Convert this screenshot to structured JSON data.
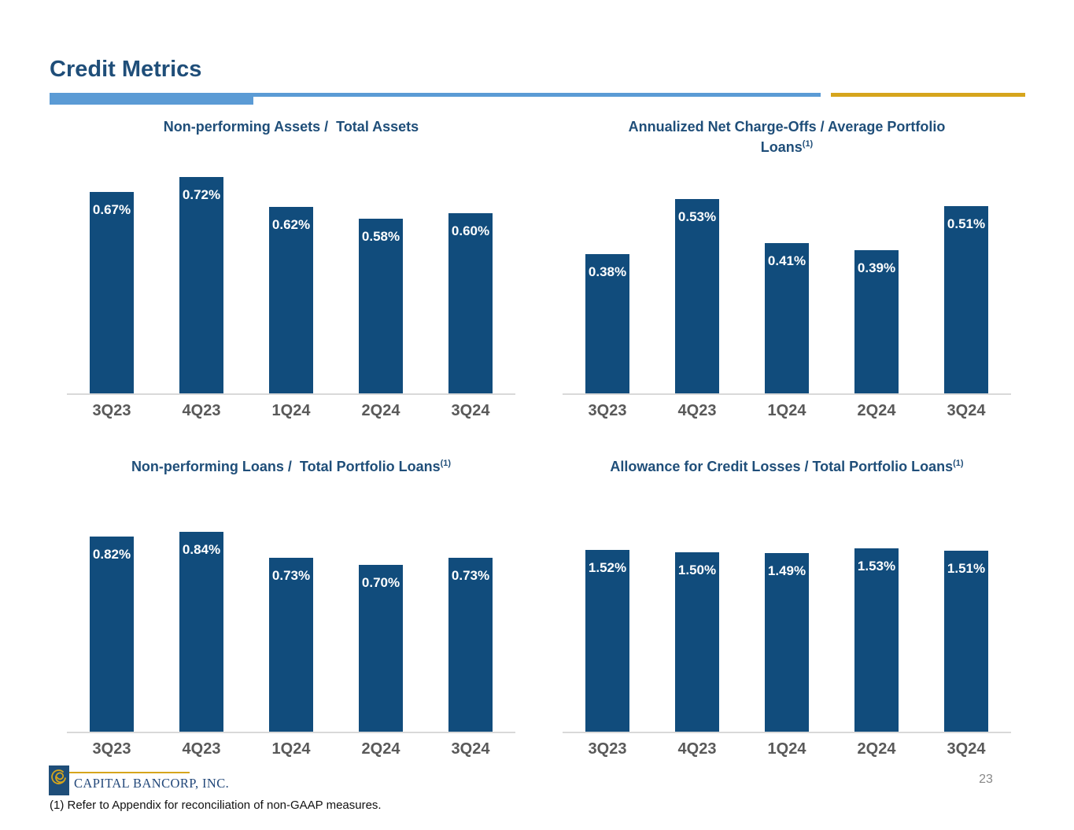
{
  "page": {
    "title": "Credit Metrics",
    "page_number": "23",
    "footnote": "(1) Refer to Appendix for reconciliation of non-GAAP measures.",
    "logo_text": "CAPITAL BANCORP, INC.",
    "colors": {
      "navy": "#1F4E79",
      "bar_fill": "#114C7C",
      "accent_blue": "#5B9BD5",
      "gold": "#D6A51C",
      "axis_label_gray": "#595959",
      "axis_line_gray": "#D9D9D9"
    }
  },
  "chart_data": [
    {
      "type": "bar",
      "title_line1": "Non-performing Assets /  Total Assets",
      "title_line2": "",
      "title_sup": "",
      "categories": [
        "3Q23",
        "4Q23",
        "1Q24",
        "2Q24",
        "3Q24"
      ],
      "values": [
        0.67,
        0.72,
        0.62,
        0.58,
        0.6
      ],
      "labels": [
        "0.67%",
        "0.72%",
        "0.62%",
        "0.58%",
        "0.60%"
      ],
      "ylabel": "",
      "xlabel": "",
      "ylim": [
        0,
        0.79
      ],
      "grid": false,
      "legend": "none",
      "data_labels": "inside-top-white"
    },
    {
      "type": "bar",
      "title_line1": "Annualized Net Charge-Offs / Average Portfolio",
      "title_line2": "Loans",
      "title_sup": "(1)",
      "categories": [
        "3Q23",
        "4Q23",
        "1Q24",
        "2Q24",
        "3Q24"
      ],
      "values": [
        0.38,
        0.53,
        0.41,
        0.39,
        0.51
      ],
      "labels": [
        "0.38%",
        "0.53%",
        "0.41%",
        "0.39%",
        "0.51%"
      ],
      "ylabel": "",
      "xlabel": "",
      "ylim": [
        0,
        0.64
      ],
      "grid": false,
      "legend": "none",
      "data_labels": "inside-top-white"
    },
    {
      "type": "bar",
      "title_line1": "Non-performing Loans /  Total Portfolio Loans",
      "title_line2": "",
      "title_sup": "(1)",
      "categories": [
        "3Q23",
        "4Q23",
        "1Q24",
        "2Q24",
        "3Q24"
      ],
      "values": [
        0.82,
        0.84,
        0.73,
        0.7,
        0.73
      ],
      "labels": [
        "0.82%",
        "0.84%",
        "0.73%",
        "0.70%",
        "0.73%"
      ],
      "ylabel": "",
      "xlabel": "",
      "ylim": [
        0,
        0.98
      ],
      "grid": false,
      "legend": "none",
      "data_labels": "inside-top-white"
    },
    {
      "type": "bar",
      "title_line1": "Allowance for Credit Losses / Total Portfolio Loans",
      "title_line2": "",
      "title_sup": "(1)",
      "categories": [
        "3Q23",
        "4Q23",
        "1Q24",
        "2Q24",
        "3Q24"
      ],
      "values": [
        1.52,
        1.5,
        1.49,
        1.53,
        1.51
      ],
      "labels": [
        "1.52%",
        "1.50%",
        "1.49%",
        "1.53%",
        "1.51%"
      ],
      "ylabel": "",
      "xlabel": "",
      "ylim": [
        0,
        1.94
      ],
      "grid": false,
      "legend": "none",
      "data_labels": "inside-top-white"
    }
  ]
}
